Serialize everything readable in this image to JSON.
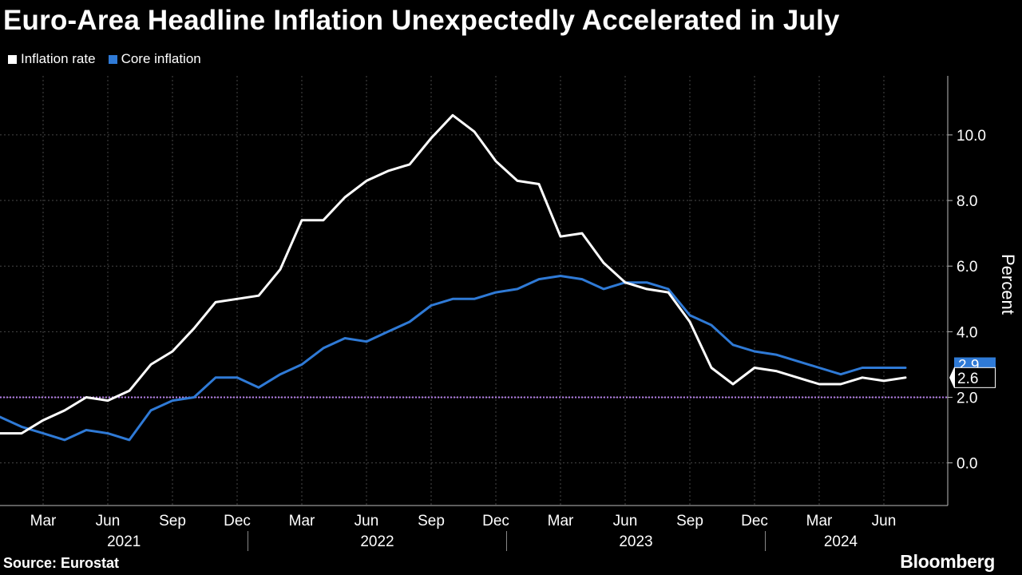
{
  "title": "Euro-Area Headline Inflation Unexpectedly Accelerated in July",
  "source": "Source: Eurostat",
  "brand": "Bloomberg",
  "colors": {
    "background": "#000000",
    "inflation": "#ffffff",
    "core": "#2f7ad6",
    "target": "#b57fe8",
    "grid": "#4a4a4a"
  },
  "chart_data": {
    "type": "line",
    "ylabel": "Percent",
    "ylim": [
      -1.3,
      11.8
    ],
    "yticks": [
      0.0,
      2.0,
      4.0,
      6.0,
      8.0,
      10.0
    ],
    "ytick_labels": [
      "0.0",
      "2.0",
      "4.0",
      "6.0",
      "8.0",
      "10.0"
    ],
    "y_axis_side": "right",
    "grid": true,
    "legend_position": "top-left",
    "x": [
      "2021-01",
      "2021-02",
      "2021-03",
      "2021-04",
      "2021-05",
      "2021-06",
      "2021-07",
      "2021-08",
      "2021-09",
      "2021-10",
      "2021-11",
      "2021-12",
      "2022-01",
      "2022-02",
      "2022-03",
      "2022-04",
      "2022-05",
      "2022-06",
      "2022-07",
      "2022-08",
      "2022-09",
      "2022-10",
      "2022-11",
      "2022-12",
      "2023-01",
      "2023-02",
      "2023-03",
      "2023-04",
      "2023-05",
      "2023-06",
      "2023-07",
      "2023-08",
      "2023-09",
      "2023-10",
      "2023-11",
      "2023-12",
      "2024-01",
      "2024-02",
      "2024-03",
      "2024-04",
      "2024-05",
      "2024-06",
      "2024-07"
    ],
    "month_ticks": [
      {
        "x": "2021-03",
        "label": "Mar"
      },
      {
        "x": "2021-06",
        "label": "Jun"
      },
      {
        "x": "2021-09",
        "label": "Sep"
      },
      {
        "x": "2021-12",
        "label": "Dec"
      },
      {
        "x": "2022-03",
        "label": "Mar"
      },
      {
        "x": "2022-06",
        "label": "Jun"
      },
      {
        "x": "2022-09",
        "label": "Sep"
      },
      {
        "x": "2022-12",
        "label": "Dec"
      },
      {
        "x": "2023-03",
        "label": "Mar"
      },
      {
        "x": "2023-06",
        "label": "Jun"
      },
      {
        "x": "2023-09",
        "label": "Sep"
      },
      {
        "x": "2023-12",
        "label": "Dec"
      },
      {
        "x": "2024-03",
        "label": "Mar"
      },
      {
        "x": "2024-06",
        "label": "Jun"
      }
    ],
    "year_labels": [
      "2021",
      "2022",
      "2023",
      "2024"
    ],
    "reference_line": {
      "y": 2.0
    },
    "series": [
      {
        "name": "Inflation rate",
        "color": "#ffffff",
        "end_label": "2.6",
        "values": [
          0.9,
          0.9,
          1.3,
          1.6,
          2.0,
          1.9,
          2.2,
          3.0,
          3.4,
          4.1,
          4.9,
          5.0,
          5.1,
          5.9,
          7.4,
          7.4,
          8.1,
          8.6,
          8.9,
          9.1,
          9.9,
          10.6,
          10.1,
          9.2,
          8.6,
          8.5,
          6.9,
          7.0,
          6.1,
          5.5,
          5.3,
          5.2,
          4.3,
          2.9,
          2.4,
          2.9,
          2.8,
          2.6,
          2.4,
          2.4,
          2.6,
          2.5,
          2.6
        ]
      },
      {
        "name": "Core inflation",
        "color": "#2f7ad6",
        "end_label": "2.9",
        "values": [
          1.4,
          1.1,
          0.9,
          0.7,
          1.0,
          0.9,
          0.7,
          1.6,
          1.9,
          2.0,
          2.6,
          2.6,
          2.3,
          2.7,
          3.0,
          3.5,
          3.8,
          3.7,
          4.0,
          4.3,
          4.8,
          5.0,
          5.0,
          5.2,
          5.3,
          5.6,
          5.7,
          5.6,
          5.3,
          5.5,
          5.5,
          5.3,
          4.5,
          4.2,
          3.6,
          3.4,
          3.3,
          3.1,
          2.9,
          2.7,
          2.9,
          2.9,
          2.9
        ]
      }
    ]
  }
}
